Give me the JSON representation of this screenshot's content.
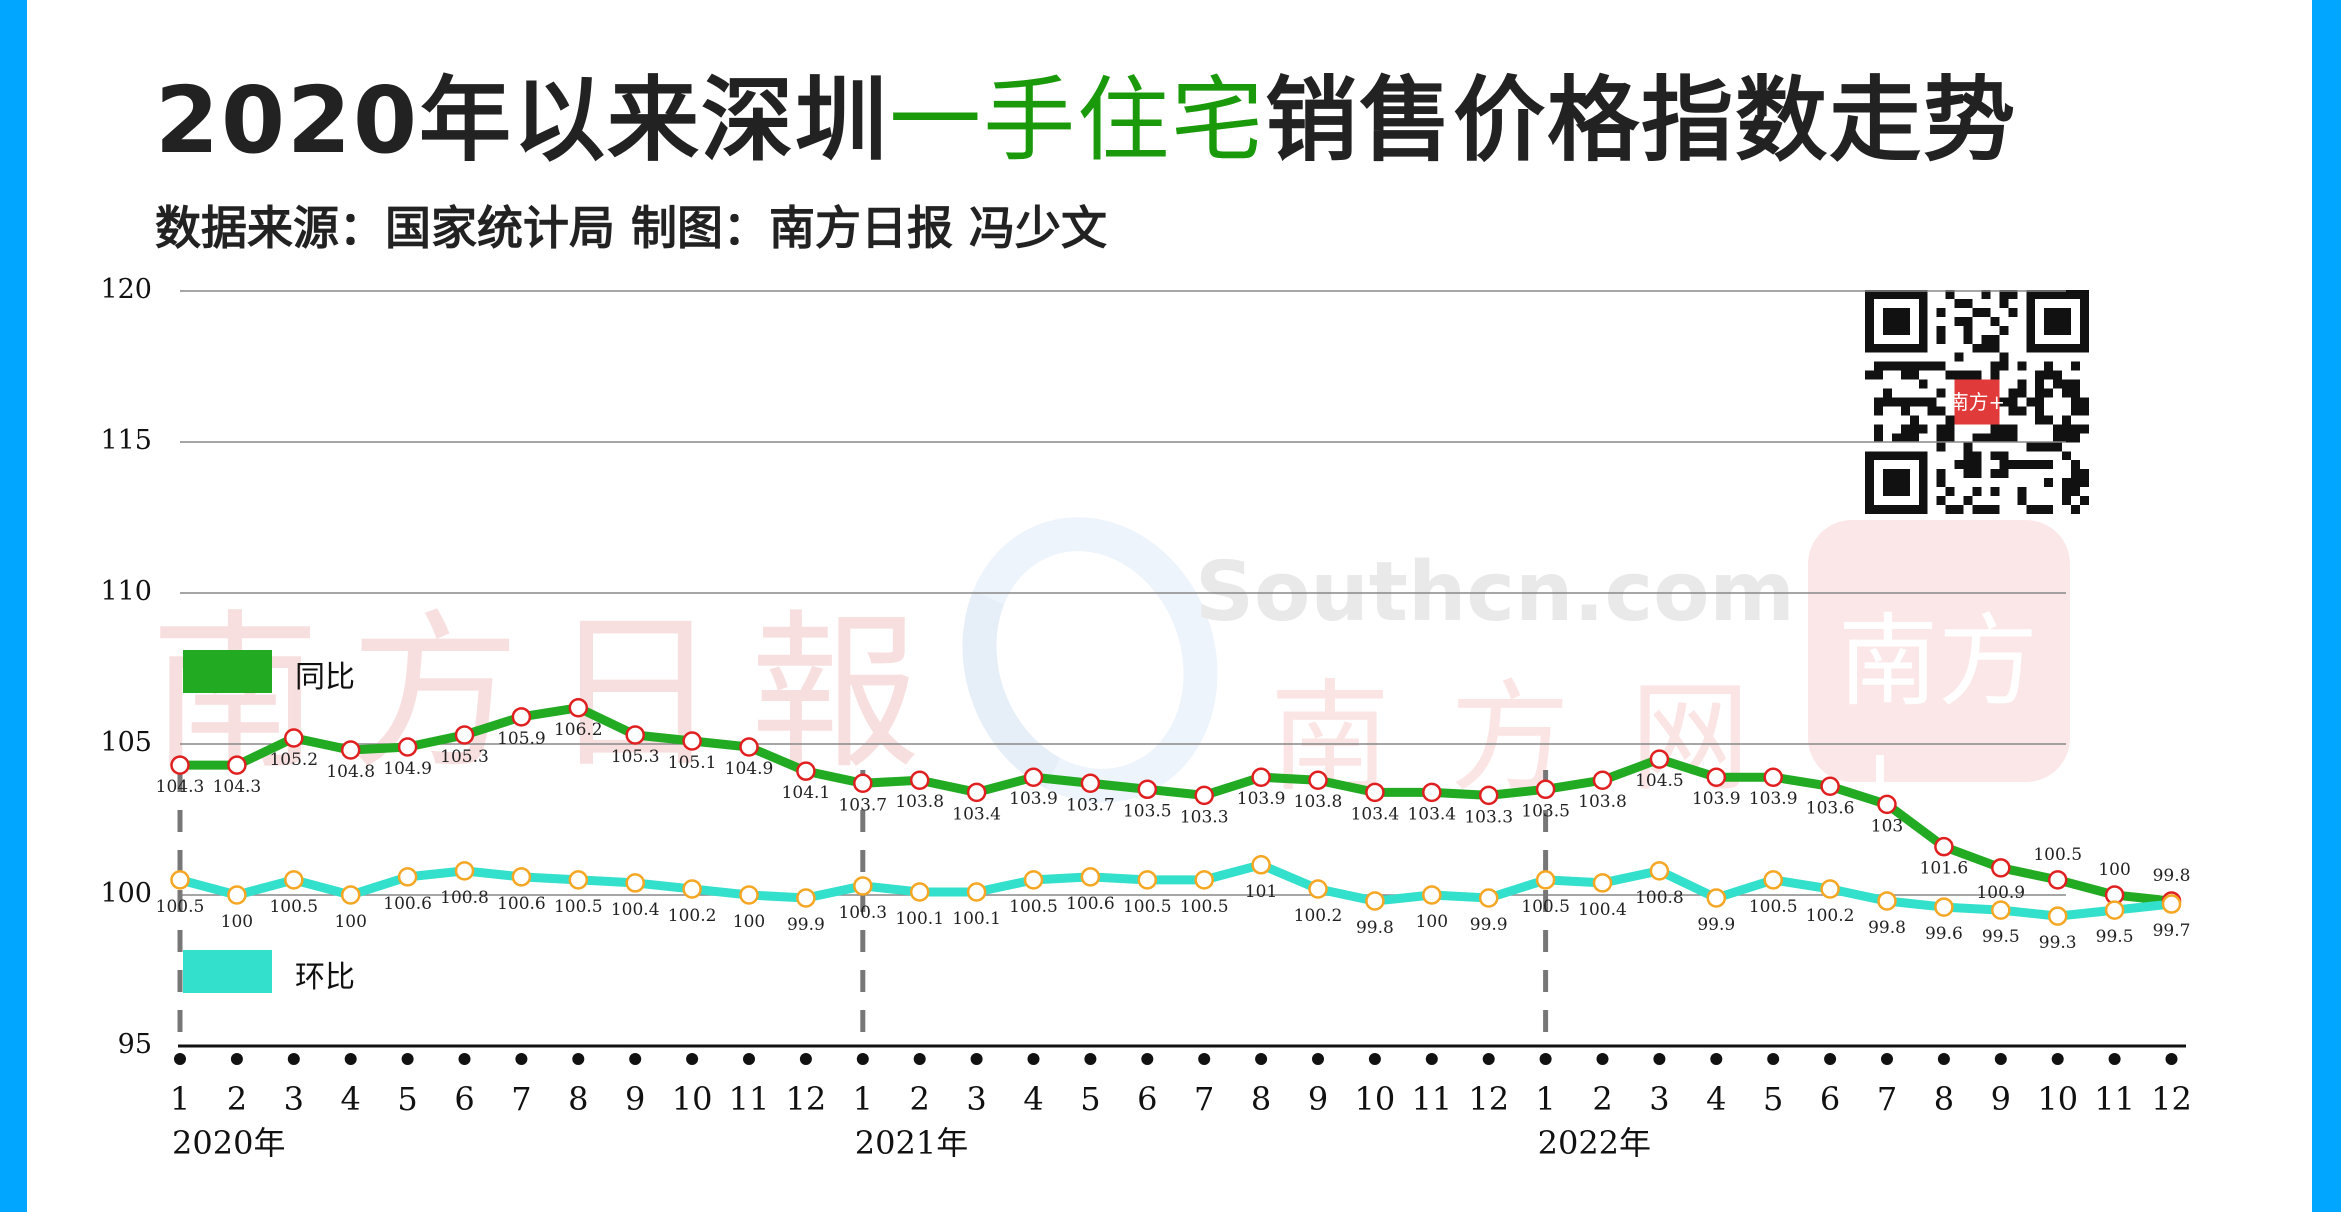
{
  "header": {
    "title_prefix": "2020年以来深圳",
    "title_highlight": "一手住宅",
    "title_suffix": "销售价格指数走势",
    "subtitle": "数据来源：国家统计局 制图：南方日报 冯少文"
  },
  "colors": {
    "border": "#00a6ff",
    "title_highlight": "#1a9a0a",
    "yoy_line": "#22aa22",
    "yoy_marker": "#e02020",
    "mom_line": "#33e0cc",
    "mom_marker": "#f5a623",
    "gridline": "#888888",
    "axis": "#111111"
  },
  "watermarks": {
    "nfrb": "南方日報",
    "southcn": "Southcn.com",
    "nfw": "南方网",
    "nfplus": "南方+"
  },
  "qr": {
    "center_badge": "南方+"
  },
  "chart_data": {
    "type": "line",
    "title": "2020年以来深圳一手住宅销售价格指数走势",
    "subtitle": "数据来源：国家统计局 制图：南方日报 冯少文",
    "xlabel": "",
    "ylabel": "",
    "ylim": [
      95,
      120
    ],
    "yticks": [
      95,
      100,
      105,
      110,
      115,
      120
    ],
    "grid": true,
    "legend_position": "left, inside plot",
    "x": [
      "1",
      "2",
      "3",
      "4",
      "5",
      "6",
      "7",
      "8",
      "9",
      "10",
      "11",
      "12",
      "1",
      "2",
      "3",
      "4",
      "5",
      "6",
      "7",
      "8",
      "9",
      "10",
      "11",
      "12",
      "1",
      "2",
      "3",
      "4",
      "5",
      "6",
      "7",
      "8",
      "9",
      "10",
      "11",
      "12"
    ],
    "year_labels": [
      {
        "label": "2020年",
        "index": 0
      },
      {
        "label": "2021年",
        "index": 12
      },
      {
        "label": "2022年",
        "index": 24
      }
    ],
    "series": [
      {
        "name": "同比",
        "values": [
          104.3,
          104.3,
          105.2,
          104.8,
          104.9,
          105.3,
          105.9,
          106.2,
          105.3,
          105.1,
          104.9,
          104.1,
          103.7,
          103.8,
          103.4,
          103.9,
          103.7,
          103.5,
          103.3,
          103.9,
          103.8,
          103.4,
          103.4,
          103.3,
          103.5,
          103.8,
          104.5,
          103.9,
          103.9,
          103.6,
          103,
          101.6,
          100.9,
          100.5,
          100,
          99.8
        ]
      },
      {
        "name": "环比",
        "values": [
          100.5,
          100,
          100.5,
          100,
          100.6,
          100.8,
          100.6,
          100.5,
          100.4,
          100.2,
          100,
          99.9,
          100.3,
          100.1,
          100.1,
          100.5,
          100.6,
          100.5,
          100.5,
          101,
          100.2,
          99.8,
          100,
          99.9,
          100.5,
          100.4,
          100.8,
          99.9,
          100.5,
          100.2,
          99.8,
          99.6,
          99.5,
          99.3,
          99.5,
          99.7
        ]
      }
    ]
  }
}
